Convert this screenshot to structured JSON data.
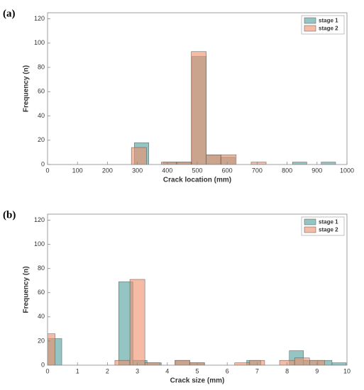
{
  "chart_data": [
    {
      "type": "histogram",
      "panel": "(a)",
      "xlabel": "Crack location (mm)",
      "ylabel": "Frequency (n)",
      "xlim": [
        0,
        1000
      ],
      "xticks": [
        0,
        100,
        200,
        300,
        400,
        500,
        600,
        700,
        800,
        900,
        1000
      ],
      "ylim": [
        0,
        125
      ],
      "yticks": [
        0,
        20,
        40,
        60,
        80,
        100,
        120
      ],
      "legend": "upper right",
      "series": [
        {
          "name": "stage 1",
          "color": "#4e9e9b",
          "bins": [
            290,
            338,
            386,
            434,
            482,
            530,
            578,
            626,
            674,
            722,
            770,
            818,
            866,
            914,
            962
          ],
          "values": [
            18,
            0,
            2,
            2,
            89,
            8,
            6,
            0,
            0,
            0,
            0,
            2,
            0,
            2
          ]
        },
        {
          "name": "stage 2",
          "color": "#ee8d68",
          "bins": [
            280,
            330,
            380,
            430,
            480,
            530,
            580,
            630,
            680,
            730
          ],
          "values": [
            14,
            0,
            2,
            2,
            93,
            8,
            8,
            0,
            2
          ]
        }
      ]
    },
    {
      "type": "histogram",
      "panel": "(b)",
      "xlabel": "Crack size (mm)",
      "ylabel": "Frequency (n)",
      "xlim": [
        0,
        10
      ],
      "xticks": [
        0,
        1,
        2,
        3,
        4,
        5,
        6,
        7,
        8,
        9,
        10
      ],
      "ylim": [
        0,
        125
      ],
      "yticks": [
        0,
        20,
        40,
        60,
        80,
        100,
        120
      ],
      "legend": "upper right",
      "series": [
        {
          "name": "stage 1",
          "color": "#4e9e9b",
          "bins": [
            0,
            0.475,
            0.95,
            1.425,
            1.9,
            2.375,
            2.85,
            3.325,
            3.8,
            4.275,
            4.75,
            5.225,
            5.7,
            6.175,
            6.65,
            7.125,
            7.6,
            8.075,
            8.55,
            9.025,
            9.5,
            9.975
          ],
          "values": [
            22,
            0,
            0,
            0,
            0,
            69,
            4,
            2,
            0,
            4,
            2,
            0,
            0,
            0,
            4,
            0,
            0,
            12,
            4,
            4,
            2
          ]
        },
        {
          "name": "stage 2",
          "color": "#ee8d68",
          "bins": [
            -0.25,
            0.25,
            0.75,
            1.25,
            1.75,
            2.25,
            2.75,
            3.25,
            3.75,
            4.25,
            4.75,
            5.25,
            5.75,
            6.25,
            6.75,
            7.25,
            7.75,
            8.25,
            8.75,
            9.25,
            9.75
          ],
          "values": [
            26,
            0,
            0,
            0,
            0,
            4,
            71,
            2,
            0,
            4,
            2,
            0,
            0,
            2,
            4,
            0,
            4,
            6,
            4,
            0
          ]
        }
      ]
    }
  ]
}
